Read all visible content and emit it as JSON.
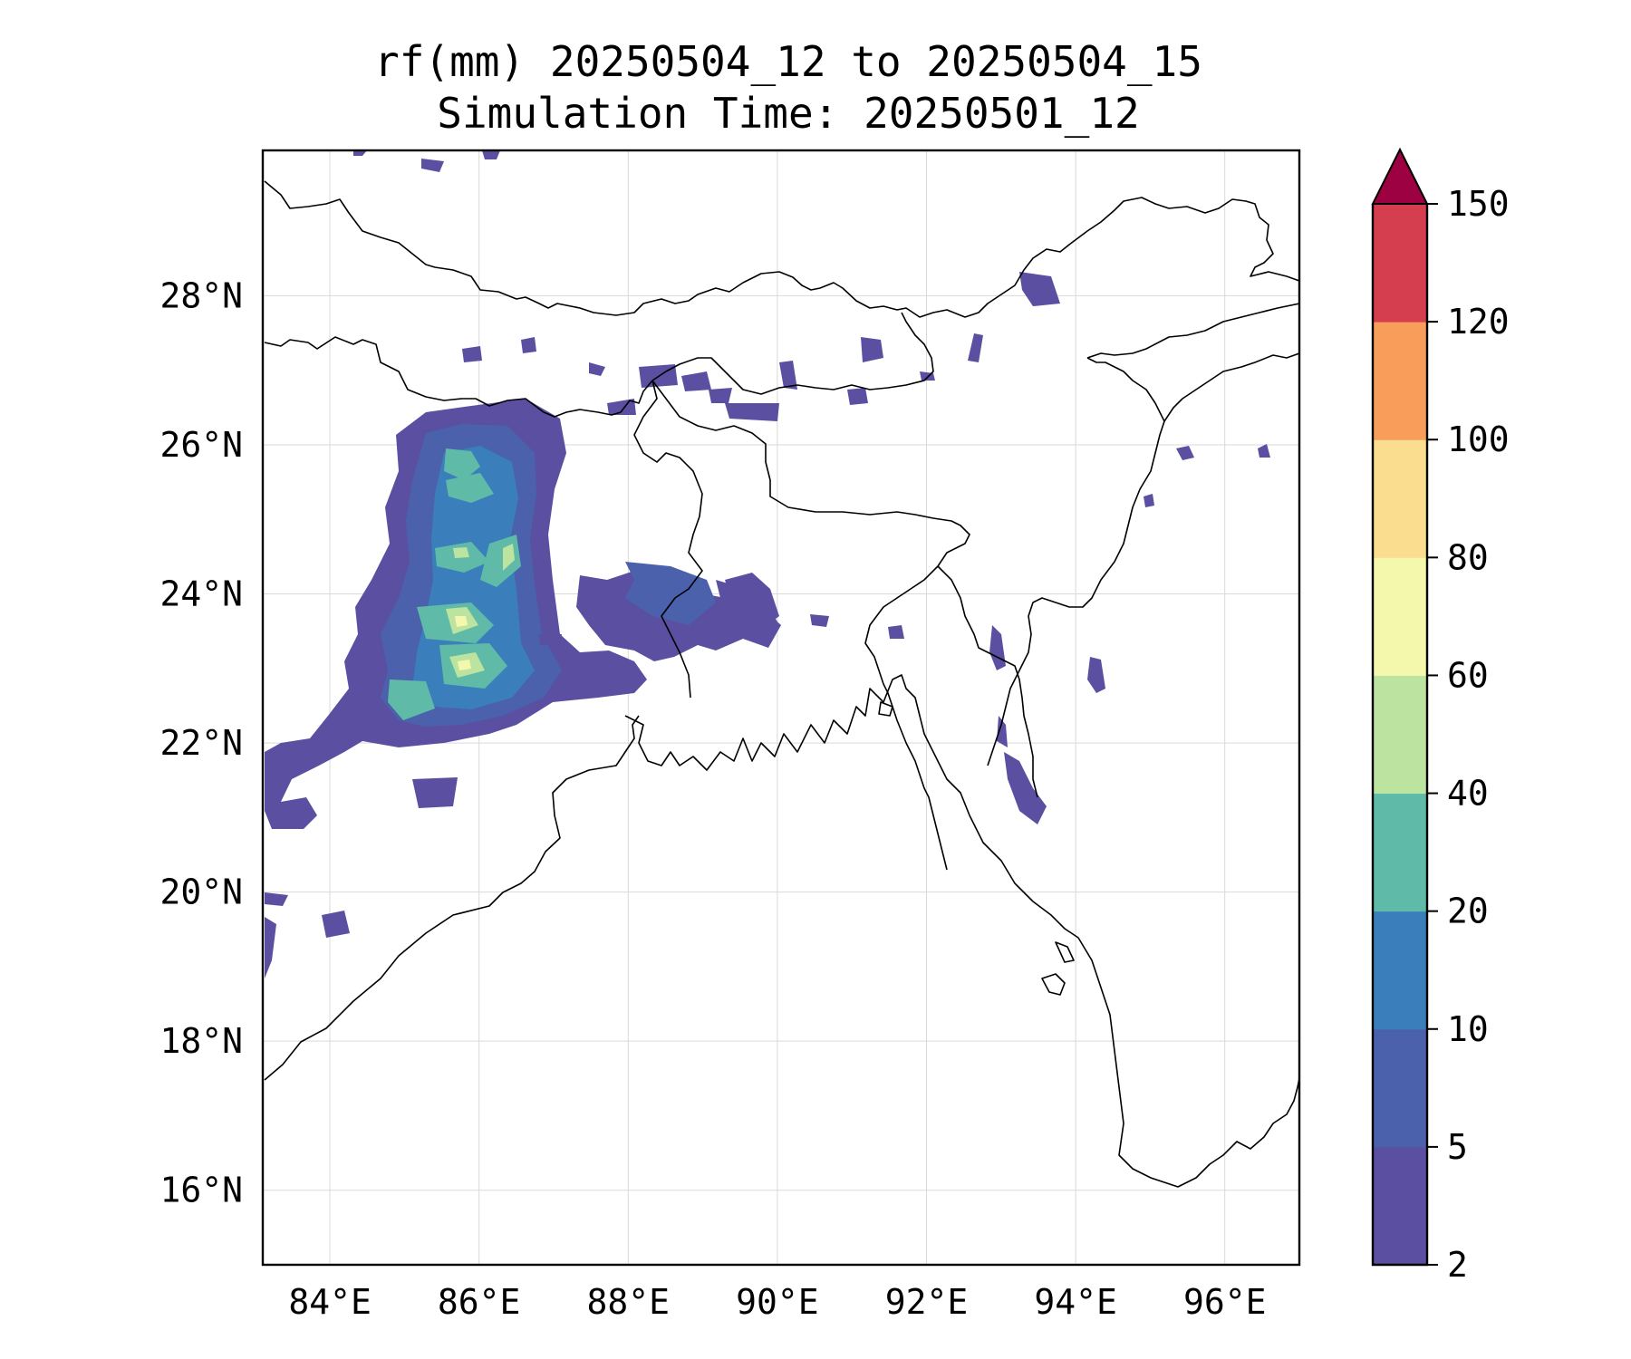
{
  "title": {
    "line1": "rf(mm) 20250504_12 to 20250504_15",
    "line2": "Simulation Time: 20250501_12"
  },
  "map": {
    "lon_range": [
      83.1,
      97.0
    ],
    "lat_range": [
      15.0,
      29.95
    ],
    "lon_ticks": [
      {
        "value": 84,
        "label": "84°E"
      },
      {
        "value": 86,
        "label": "86°E"
      },
      {
        "value": 88,
        "label": "88°E"
      },
      {
        "value": 90,
        "label": "90°E"
      },
      {
        "value": 92,
        "label": "92°E"
      },
      {
        "value": 94,
        "label": "94°E"
      },
      {
        "value": 96,
        "label": "96°E"
      }
    ],
    "lat_ticks": [
      {
        "value": 16,
        "label": "16°N"
      },
      {
        "value": 18,
        "label": "18°N"
      },
      {
        "value": 20,
        "label": "20°N"
      },
      {
        "value": 22,
        "label": "22°N"
      },
      {
        "value": 24,
        "label": "24°N"
      },
      {
        "value": 26,
        "label": "26°N"
      },
      {
        "value": 28,
        "label": "28°N"
      }
    ],
    "grid": true
  },
  "colorbar": {
    "levels": [
      "2",
      "5",
      "10",
      "20",
      "40",
      "60",
      "80",
      "100",
      "120",
      "150"
    ],
    "colors": [
      "#5a4fa1",
      "#4b61ac",
      "#3a7fbb",
      "#5fbba8",
      "#bde3a1",
      "#f3f8ad",
      "#fbdd8f",
      "#f89d5a",
      "#d43e4e"
    ],
    "extend_color": "#9e0142",
    "extend": "max"
  }
}
